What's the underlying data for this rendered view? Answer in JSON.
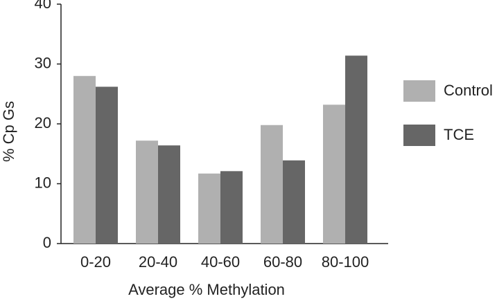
{
  "chart_data": {
    "type": "bar",
    "xlabel": "Average % Methylation",
    "ylabel": "% Cp Gs",
    "categories": [
      "0-20",
      "20-40",
      "40-60",
      "60-80",
      "80-100"
    ],
    "series": [
      {
        "name": "Control",
        "color": "#b0b0b0",
        "values": [
          28.0,
          17.2,
          11.7,
          19.8,
          23.2
        ]
      },
      {
        "name": "TCE",
        "color": "#666666",
        "values": [
          26.2,
          16.4,
          12.1,
          13.9,
          31.4
        ]
      }
    ],
    "ylim": [
      0,
      40
    ],
    "yticks": [
      0,
      10,
      20,
      30,
      40
    ],
    "legend": "right"
  }
}
